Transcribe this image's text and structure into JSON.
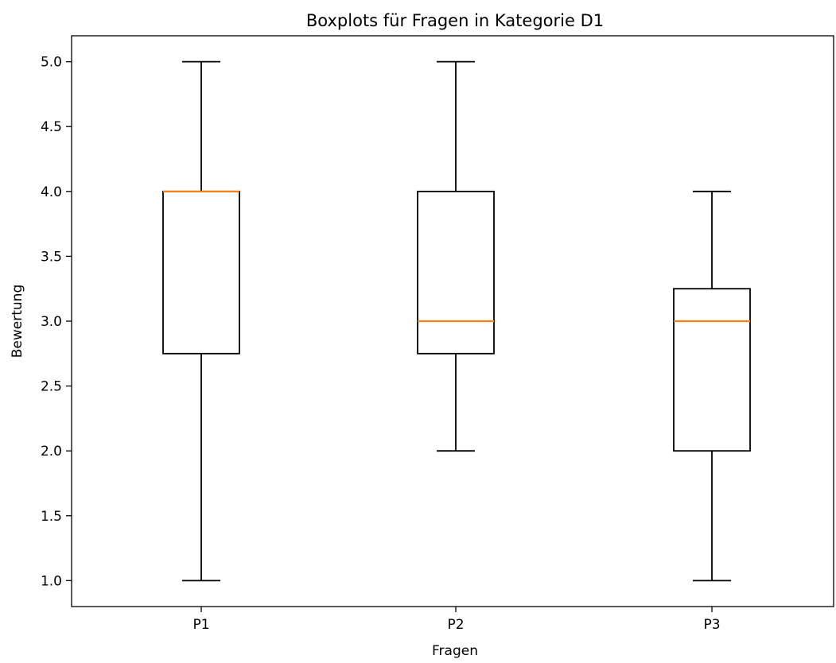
{
  "chart_data": {
    "type": "boxplot",
    "title": "Boxplots für Fragen in Kategorie D1",
    "xlabel": "Fragen",
    "ylabel": "Bewertung",
    "ylim": [
      0.8,
      5.2
    ],
    "yticks": [
      "1.0",
      "1.5",
      "2.0",
      "2.5",
      "3.0",
      "3.5",
      "4.0",
      "4.5",
      "5.0"
    ],
    "grid": false,
    "categories": [
      "P1",
      "P2",
      "P3"
    ],
    "boxes": [
      {
        "label": "P1",
        "min": 1.0,
        "q1": 2.75,
        "median": 4.0,
        "q3": 4.0,
        "max": 5.0
      },
      {
        "label": "P2",
        "min": 2.0,
        "q1": 2.75,
        "median": 3.0,
        "q3": 4.0,
        "max": 5.0
      },
      {
        "label": "P3",
        "min": 1.0,
        "q1": 2.0,
        "median": 3.0,
        "q3": 3.25,
        "max": 4.0
      }
    ],
    "colors": {
      "box": "#000000",
      "median": "#ff7f0e",
      "axes": "#000000",
      "background": "#ffffff"
    }
  }
}
